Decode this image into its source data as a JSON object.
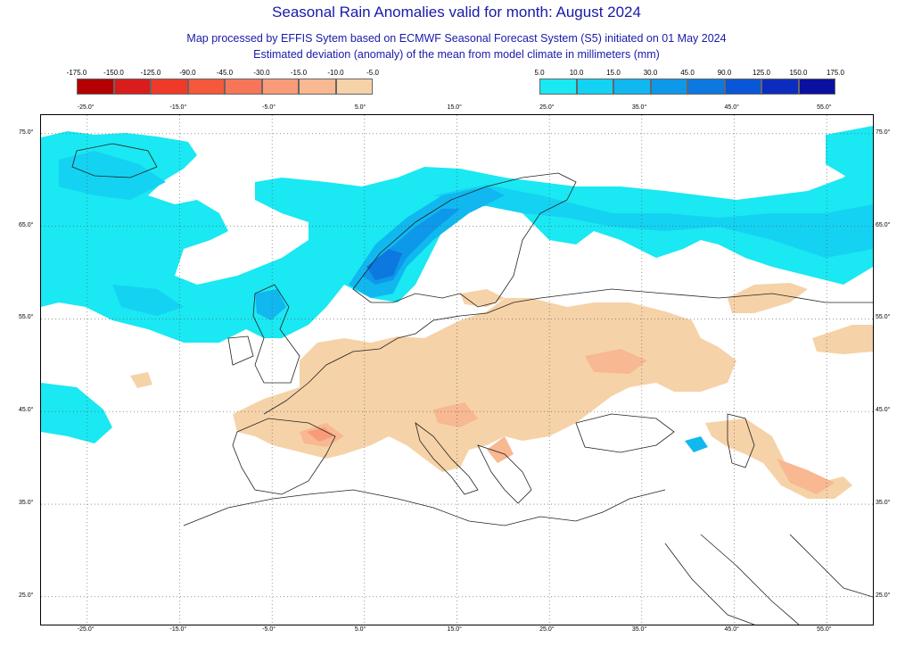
{
  "header": {
    "title": "Seasonal Rain Anomalies valid for month: August 2024",
    "subtitle1": "Map processed by EFFIS Sytem based on ECMWF Seasonal Forecast System (S5) initiated on 01 May 2024",
    "subtitle2": "Estimated deviation (anomaly) of the mean from model climate in millimeters (mm)"
  },
  "legend_dry": {
    "labels": [
      "-175.0",
      "-150.0",
      "-125.0",
      "-90.0",
      "-45.0",
      "-30.0",
      "-15.0",
      "-10.0",
      "-5.0"
    ],
    "colors": [
      "#b40000",
      "#d91c1c",
      "#ef3a2a",
      "#f5583a",
      "#f7765a",
      "#f89b78",
      "#f7b892",
      "#f6d2a8"
    ]
  },
  "legend_wet": {
    "labels": [
      "5.0",
      "10.0",
      "15.0",
      "30.0",
      "45.0",
      "90.0",
      "125.0",
      "150.0",
      "175.0"
    ],
    "colors": [
      "#1ae8f2",
      "#14d2f2",
      "#10b8ef",
      "#0e98ea",
      "#0c78e0",
      "#0a56d8",
      "#0c2cc0",
      "#0a10a0"
    ]
  },
  "axes": {
    "lon_labels": [
      "-25.0°",
      "-15.0°",
      "-5.0°",
      "5.0°",
      "15.0°",
      "25.0°",
      "35.0°",
      "45.0°",
      "55.0°"
    ],
    "lat_labels": [
      "75.0°",
      "65.0°",
      "55.0°",
      "45.0°",
      "35.0°",
      "25.0°"
    ]
  },
  "map": {
    "lon_range": [
      -30,
      60
    ],
    "lat_range": [
      22,
      77
    ],
    "land_outline_color": "#222222",
    "grid_style": "dotted"
  }
}
